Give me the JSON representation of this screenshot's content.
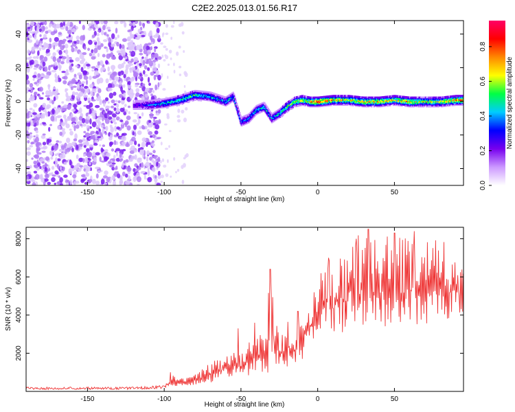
{
  "title": "C2E2.2025.013.01.56.R17",
  "chart_data": [
    {
      "type": "heatmap",
      "xlabel": "Height of straight line (km)",
      "ylabel": "Frequency (Hz)",
      "xlim": [
        -190,
        95
      ],
      "ylim": [
        -50,
        48
      ],
      "xticks": [
        -150,
        -100,
        -50,
        0,
        50
      ],
      "yticks": [
        -40,
        -20,
        0,
        20,
        40
      ],
      "colorbar": {
        "label": "Normalized spectral amplitude",
        "range": [
          0,
          0.95
        ],
        "ticks": [
          0.0,
          0.2,
          0.4,
          0.6,
          0.8
        ],
        "tick_labels": [
          "0.0",
          "0.2",
          "0.4",
          "0.6",
          "0.8"
        ],
        "colors": [
          "#ffffff",
          "#cc99ff",
          "#7700ee",
          "#0000ff",
          "#00ccff",
          "#00ff44",
          "#ffff00",
          "#ff8800",
          "#ff0000",
          "#ff0066"
        ]
      },
      "regions": [
        {
          "name": "noise",
          "x": [
            -190,
            -103
          ],
          "y": [
            -50,
            48
          ],
          "amplitude": 0.2
        },
        {
          "name": "sparse",
          "x": [
            -103,
            -85
          ],
          "y": [
            -50,
            48
          ],
          "amplitude": 0.05
        }
      ],
      "signal_track": {
        "x": [
          -120,
          -110,
          -100,
          -90,
          -80,
          -70,
          -60,
          -55,
          -50,
          -45,
          -40,
          -35,
          -30,
          -25,
          -20,
          -15,
          -10,
          -5,
          0,
          10,
          20,
          30,
          40,
          50,
          60,
          70,
          80,
          90,
          95
        ],
        "frequency": [
          -2,
          -2,
          -1,
          1,
          4,
          3,
          0,
          3,
          -12,
          -10,
          -5,
          -3,
          -10,
          -7,
          -3,
          0,
          1,
          0,
          0,
          1,
          1,
          0,
          0,
          1,
          0,
          0,
          0,
          1,
          1
        ],
        "amplitude": [
          0.25,
          0.35,
          0.45,
          0.5,
          0.5,
          0.45,
          0.4,
          0.45,
          0.35,
          0.4,
          0.45,
          0.45,
          0.4,
          0.5,
          0.55,
          0.6,
          0.65,
          0.7,
          0.85,
          0.7,
          0.65,
          0.7,
          0.7,
          0.65,
          0.7,
          0.6,
          0.65,
          0.75,
          0.8
        ]
      }
    },
    {
      "type": "line",
      "xlabel": "Height of straight line (km)",
      "ylabel": "SNR (10 * v/v)",
      "xlim": [
        -190,
        95
      ],
      "ylim": [
        0,
        8600
      ],
      "xticks": [
        -150,
        -100,
        -50,
        0,
        50
      ],
      "yticks": [
        2000,
        4000,
        6000,
        8000
      ],
      "color": "#ee3333",
      "envelope": {
        "x": [
          -190,
          -120,
          -100,
          -95,
          -90,
          -80,
          -70,
          -60,
          -50,
          -40,
          -35,
          -30,
          -25,
          -20,
          -15,
          -10,
          -5,
          0,
          5,
          10,
          20,
          30,
          40,
          50,
          60,
          70,
          80,
          90,
          95
        ],
        "low": [
          100,
          100,
          150,
          300,
          250,
          350,
          450,
          600,
          700,
          900,
          1000,
          800,
          1100,
          1300,
          1400,
          1600,
          2800,
          2700,
          2900,
          3000,
          3000,
          3200,
          3300,
          3400,
          3500,
          3300,
          3500,
          3600,
          3600
        ],
        "high": [
          230,
          230,
          320,
          1000,
          650,
          900,
          1600,
          2000,
          2300,
          2900,
          3800,
          6400,
          3000,
          3700,
          3200,
          4200,
          4500,
          6000,
          7000,
          6800,
          8000,
          8500,
          8400,
          8300,
          8300,
          8100,
          8000,
          7600,
          7200
        ],
        "spikes": [
          [
            -96,
            1000
          ],
          [
            -52,
            3300
          ],
          [
            -41,
            3600
          ],
          [
            -31,
            6400
          ],
          [
            -13,
            4200
          ],
          [
            7,
            7000
          ],
          [
            25,
            8000
          ],
          [
            33,
            8500
          ],
          [
            50,
            8300
          ],
          [
            63,
            8400
          ]
        ]
      }
    }
  ]
}
